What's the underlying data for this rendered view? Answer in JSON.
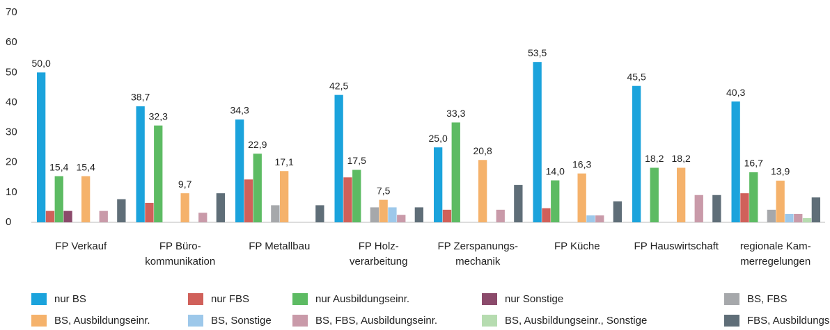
{
  "chart_data": {
    "type": "bar",
    "categories": [
      "FP Verkauf",
      "FP Büro-\nkommunikation",
      "FP Metallbau",
      "FP Holz-\nverarbeitung",
      "FP Zerspanungs-\nmechanik",
      "FP Küche",
      "FP Hauswirtschaft",
      "regionale Kam-\nmerregelungen"
    ],
    "ylim": [
      0,
      70
    ],
    "yticks": [
      0,
      10,
      20,
      30,
      40,
      50,
      60,
      70
    ],
    "series": [
      {
        "name": "nur BS",
        "color": "#1ba3dc",
        "values": [
          50.0,
          38.7,
          34.3,
          42.5,
          25.0,
          53.5,
          45.5,
          40.3
        ],
        "value_labels": [
          "50,0",
          "38,7",
          "34,3",
          "42,5",
          "25,0",
          "53,5",
          "45,5",
          "40,3"
        ]
      },
      {
        "name": "nur FBS",
        "color": "#d0605a",
        "values": [
          3.8,
          6.5,
          14.3,
          15.0,
          4.2,
          4.7,
          0,
          9.7
        ]
      },
      {
        "name": "nur Ausbildungseinr.",
        "color": "#5dbb63",
        "values": [
          15.4,
          32.3,
          22.9,
          17.5,
          33.3,
          14.0,
          18.2,
          16.7
        ],
        "value_labels": [
          "15,4",
          "32,3",
          "22,9",
          "17,5",
          "33,3",
          "14,0",
          "18,2",
          "16,7"
        ]
      },
      {
        "name": "nur Sonstige",
        "color": "#8b4a6b",
        "values": [
          3.8,
          0,
          0,
          0,
          0,
          0,
          0,
          0
        ]
      },
      {
        "name": "BS, FBS",
        "color": "#a6a8ab",
        "values": [
          0,
          0,
          5.7,
          5.0,
          0,
          0,
          0,
          4.2
        ]
      },
      {
        "name": "BS, Ausbildungseinr.",
        "color": "#f5b26b",
        "values": [
          15.4,
          9.7,
          17.1,
          7.5,
          20.8,
          16.3,
          18.2,
          13.9
        ],
        "value_labels": [
          "15,4",
          "9,7",
          "17,1",
          "7,5",
          "20,8",
          "16,3",
          "18,2",
          "13,9"
        ]
      },
      {
        "name": "BS, Sonstige",
        "color": "#9dc8ea",
        "values": [
          0,
          0,
          0,
          5.0,
          0,
          2.3,
          0,
          2.8
        ]
      },
      {
        "name": "BS, FBS, Ausbildungseinr.",
        "color": "#c99aa9",
        "values": [
          3.8,
          3.2,
          0,
          2.5,
          4.2,
          2.3,
          9.1,
          2.8
        ]
      },
      {
        "name": "BS, Ausbildungseinr., Sonstige",
        "color": "#b6dcb0",
        "values": [
          0,
          0,
          0,
          0,
          0,
          0,
          0,
          1.4
        ]
      },
      {
        "name": "FBS, Ausbildungseinr.",
        "color": "#5f6e78",
        "values": [
          7.7,
          9.7,
          5.7,
          5.0,
          12.5,
          7.0,
          9.1,
          8.3
        ]
      }
    ]
  }
}
